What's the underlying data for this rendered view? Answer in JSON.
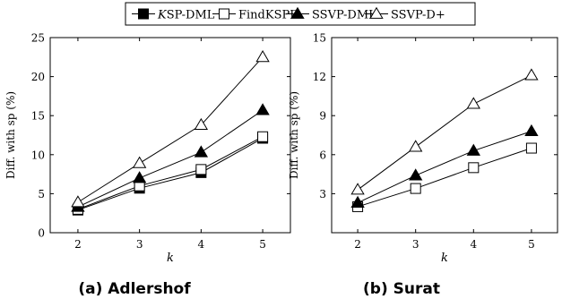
{
  "legend": {
    "entries": [
      {
        "label": "KSP-DML",
        "italic_prefix": "K",
        "label_rest": "SP-DML",
        "marker": "square-filled"
      },
      {
        "label": "FindKSPD",
        "marker": "square-open"
      },
      {
        "label": "SSVP-DML",
        "marker": "triangle-filled"
      },
      {
        "label": "SSVP-D+",
        "marker": "triangle-open"
      }
    ]
  },
  "chart_data": [
    {
      "type": "line",
      "caption": "(a) Adlershof",
      "xlabel": "k",
      "ylabel": "Diff. with sp (%)",
      "x": [
        2,
        3,
        4,
        5
      ],
      "xlim": [
        1.55,
        5.45
      ],
      "ylim": [
        0,
        25
      ],
      "yticks": [
        0,
        5,
        10,
        15,
        20,
        25
      ],
      "grid": false,
      "series": [
        {
          "name": "KSP-DML",
          "marker": "square-filled",
          "values": [
            2.9,
            5.7,
            7.7,
            12.1
          ]
        },
        {
          "name": "FindKSPD",
          "marker": "square-open",
          "values": [
            3.0,
            6.0,
            8.1,
            12.3
          ]
        },
        {
          "name": "SSVP-DML",
          "marker": "triangle-filled",
          "values": [
            3.3,
            7.0,
            10.3,
            15.7
          ]
        },
        {
          "name": "SSVP-D+",
          "marker": "triangle-open",
          "values": [
            3.9,
            8.9,
            13.8,
            22.5
          ]
        }
      ]
    },
    {
      "type": "line",
      "caption": "(b) Surat",
      "xlabel": "k",
      "ylabel": "Diff. with sp (%)",
      "x": [
        2,
        3,
        4,
        5
      ],
      "xlim": [
        1.55,
        5.45
      ],
      "ylim": [
        0,
        15
      ],
      "yticks": [
        3,
        6,
        9,
        12,
        15
      ],
      "grid": false,
      "series": [
        {
          "name": "FindKSPD",
          "marker": "square-open",
          "values": [
            2.0,
            3.4,
            5.0,
            6.5
          ]
        },
        {
          "name": "SSVP-DML",
          "marker": "triangle-filled",
          "values": [
            2.3,
            4.4,
            6.3,
            7.8
          ]
        },
        {
          "name": "SSVP-D+",
          "marker": "triangle-open",
          "values": [
            3.3,
            6.6,
            9.9,
            12.1
          ]
        }
      ]
    }
  ]
}
